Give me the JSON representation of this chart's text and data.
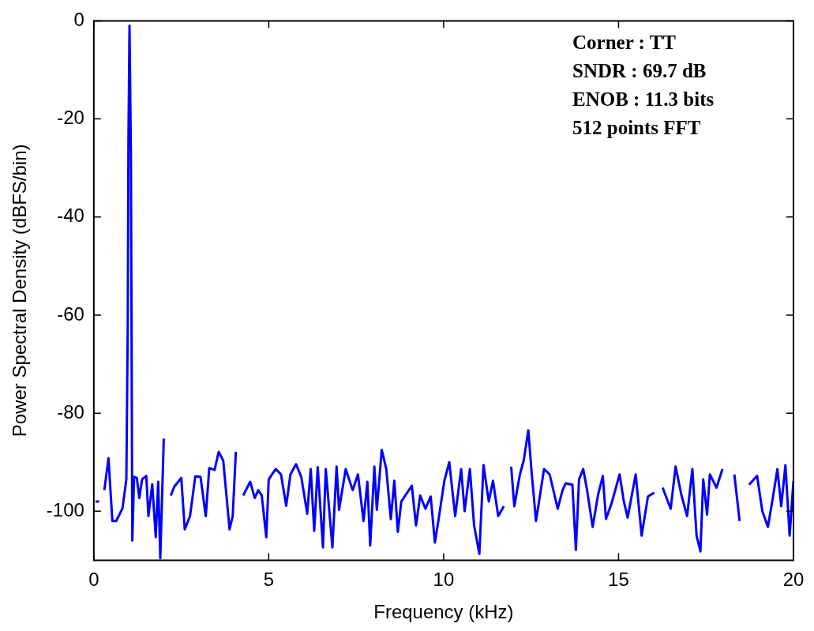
{
  "chart_data": {
    "type": "line",
    "xlabel": "Frequency (kHz)",
    "ylabel": "Power Spectral Density (dBFS/bin)",
    "xlim": [
      0,
      20
    ],
    "xticks": [
      0,
      5,
      10,
      15,
      20
    ],
    "ylim": [
      -110,
      0
    ],
    "yticks": [
      -100,
      -80,
      -60,
      -40,
      -20,
      0
    ],
    "annotations": [
      "Corner : TT",
      "SNDR : 69.7 dB",
      "ENOB : 11.3 bits",
      "512 points FFT"
    ],
    "series": [
      {
        "color": "#0000ff",
        "x": [
          0.05,
          0.15,
          0.23,
          0.3,
          0.42,
          0.53,
          0.64,
          0.82,
          0.93,
          0.97,
          0.99,
          1.02,
          1.06,
          1.1,
          1.15,
          1.23,
          1.3,
          1.38,
          1.5,
          1.56,
          1.67,
          1.77,
          1.84,
          1.9,
          2.0,
          2.08,
          2.2,
          2.3,
          2.5,
          2.6,
          2.75,
          2.9,
          3.05,
          3.2,
          3.3,
          3.45,
          3.57,
          3.7,
          3.88,
          3.97,
          4.06,
          4.16,
          4.27,
          4.47,
          4.6,
          4.7,
          4.8,
          4.93,
          5.0,
          5.2,
          5.35,
          5.5,
          5.62,
          5.78,
          5.93,
          6.1,
          6.2,
          6.3,
          6.4,
          6.55,
          6.63,
          6.82,
          6.94,
          7.01,
          7.2,
          7.4,
          7.55,
          7.71,
          7.82,
          7.9,
          8.02,
          8.09,
          8.23,
          8.36,
          8.49,
          8.59,
          8.69,
          8.79,
          9.09,
          9.21,
          9.33,
          9.48,
          9.63,
          9.75,
          9.87,
          10.02,
          10.16,
          10.33,
          10.5,
          10.6,
          10.75,
          10.87,
          11.02,
          11.14,
          11.29,
          11.41,
          11.56,
          11.72,
          11.83,
          11.93,
          12.02,
          12.18,
          12.29,
          12.42,
          12.52,
          12.64,
          12.87,
          13.03,
          13.26,
          13.4,
          13.49,
          13.68,
          13.78,
          13.87,
          13.99,
          14.1,
          14.26,
          14.41,
          14.55,
          14.64,
          14.8,
          15.03,
          15.15,
          15.26,
          15.49,
          15.66,
          15.84,
          16.02,
          16.12,
          16.26,
          16.49,
          16.63,
          16.8,
          16.96,
          17.11,
          17.23,
          17.34,
          17.42,
          17.53,
          17.61,
          17.8,
          17.97,
          18.11,
          18.31,
          18.46,
          18.57,
          18.73,
          18.96,
          19.11,
          19.27,
          19.42,
          19.54,
          19.65,
          19.77,
          19.89,
          20.0
        ],
        "values": [
          -98,
          -98,
          null,
          -95.7,
          -89.2,
          -102,
          -102,
          -99.4,
          -93.5,
          -62,
          -24,
          -1,
          -27,
          -106,
          -93,
          -93.2,
          -97.3,
          -93.5,
          -92.8,
          -101,
          -94.5,
          -105.3,
          -94,
          -109.6,
          -85.2,
          null,
          -96.8,
          -95,
          -93.2,
          -103.7,
          -101,
          -92.9,
          -93,
          -101,
          -91.2,
          -91.6,
          -87.9,
          -89.7,
          -103.7,
          -101,
          -87.9,
          null,
          -96.8,
          -94,
          -97.3,
          -95.7,
          -96.8,
          -105.3,
          -93.5,
          -91.4,
          -92.5,
          -98.9,
          -92.5,
          -90.4,
          -93,
          -100.5,
          -91.4,
          -104,
          -91,
          -107.4,
          -91.4,
          -107.4,
          -90.9,
          -99.7,
          -91.4,
          -95.7,
          -92.5,
          -102,
          -94,
          -107,
          -90.9,
          -99.7,
          -87.5,
          -91.4,
          -101.6,
          -93.8,
          -104.2,
          -98,
          -94.8,
          -102.9,
          -96.8,
          -99.5,
          -97,
          -106.4,
          -101,
          -93.8,
          -90,
          -101,
          -91.4,
          -100,
          -91.4,
          -102.9,
          -108.7,
          -90.6,
          -98,
          -93.8,
          -101,
          -99,
          null,
          -90.9,
          -99,
          -92.5,
          -89.6,
          -83.5,
          -92.5,
          -102,
          -91.4,
          -92.5,
          -99.5,
          -95.7,
          -94.3,
          -94.6,
          -107.9,
          -93.5,
          -91.4,
          -95.7,
          -103.2,
          -96.8,
          -92.8,
          -101.6,
          -98.4,
          -92.5,
          -98,
          -101.3,
          -92.5,
          -105,
          -97,
          -96.2,
          null,
          -95.2,
          -99.5,
          -90.9,
          -96.8,
          -101,
          -91.4,
          -105,
          -108.2,
          -93.5,
          -100.7,
          -92.5,
          -95.2,
          -91.4,
          null,
          -92.5,
          -102,
          null,
          -94.6,
          -92.8,
          -100,
          -103.2,
          -96.8,
          -91.4,
          -99,
          -90.6,
          -105,
          -93.8
        ]
      }
    ]
  }
}
